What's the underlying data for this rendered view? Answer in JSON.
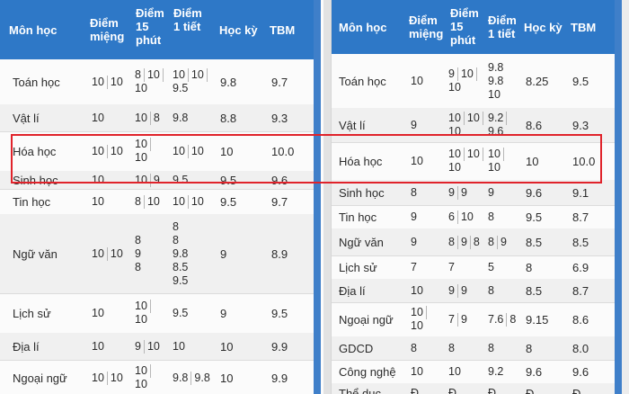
{
  "left_table": {
    "headers": {
      "subject": "Môn học",
      "oral": "Điểm miệng",
      "quiz15": "Điểm 15 phút",
      "test1": "Điểm 1 tiết",
      "semester": "Học kỳ",
      "avg": "TBM"
    },
    "rows": [
      {
        "subject": "Toán học",
        "oral": [
          "10",
          "10"
        ],
        "quiz15": [
          "8",
          "10",
          "10"
        ],
        "test1": [
          "10",
          "10",
          "9.5"
        ],
        "semester": "9.8",
        "avg": "9.7"
      },
      {
        "subject": "Vật lí",
        "oral": [
          "10"
        ],
        "quiz15": [
          "10",
          "8"
        ],
        "test1": [
          "9.8"
        ],
        "semester": "8.8",
        "avg": "9.3"
      },
      {
        "subject": "Hóa học",
        "oral": [
          "10",
          "10"
        ],
        "quiz15": [
          "10",
          "10"
        ],
        "test1": [
          "10",
          "10"
        ],
        "semester": "10",
        "avg": "10.0"
      },
      {
        "subject": "Sinh học",
        "oral": [
          "10"
        ],
        "quiz15": [
          "10",
          "9"
        ],
        "test1": [
          "9.5"
        ],
        "semester": "9.5",
        "avg": "9.6"
      },
      {
        "subject": "Tin học",
        "oral": [
          "10"
        ],
        "quiz15": [
          "8",
          "10"
        ],
        "test1": [
          "10",
          "10"
        ],
        "semester": "9.5",
        "avg": "9.7"
      },
      {
        "subject": "Ngữ văn",
        "oral": [
          "10",
          "10"
        ],
        "quiz15": [
          "8",
          "9",
          "8"
        ],
        "test1": [
          "8",
          "8",
          "9.8",
          "8.5",
          "9.5"
        ],
        "semester": "9",
        "avg": "8.9"
      },
      {
        "subject": "Lịch sử",
        "oral": [
          "10"
        ],
        "quiz15": [
          "10",
          "10"
        ],
        "test1": [
          "9.5"
        ],
        "semester": "9",
        "avg": "9.5"
      },
      {
        "subject": "Địa lí",
        "oral": [
          "10"
        ],
        "quiz15": [
          "9",
          "10"
        ],
        "test1": [
          "10"
        ],
        "semester": "10",
        "avg": "9.9"
      },
      {
        "subject": "Ngoại ngữ",
        "oral": [
          "10",
          "10"
        ],
        "quiz15": [
          "10",
          "10"
        ],
        "test1": [
          "9.8",
          "9.8"
        ],
        "semester": "10",
        "avg": "9.9"
      }
    ]
  },
  "right_table": {
    "headers": {
      "subject": "Môn học",
      "oral": "Điểm miệng",
      "quiz15": "Điểm 15 phút",
      "test1": "Điểm 1 tiết",
      "semester": "Học kỳ",
      "avg": "TBM"
    },
    "rows": [
      {
        "subject": "Toán học",
        "oral": [
          "10"
        ],
        "quiz15": [
          "9",
          "10",
          "10"
        ],
        "test1": [
          "9.8",
          "9.8",
          "10"
        ],
        "semester": "8.25",
        "avg": "9.5"
      },
      {
        "subject": "Vật lí",
        "oral": [
          "9"
        ],
        "quiz15": [
          "10",
          "10",
          "10"
        ],
        "test1": [
          "9.2",
          "9.6"
        ],
        "semester": "8.6",
        "avg": "9.3"
      },
      {
        "subject": "Hóa học",
        "oral": [
          "10"
        ],
        "quiz15": [
          "10",
          "10",
          "10"
        ],
        "test1": [
          "10",
          "10"
        ],
        "semester": "10",
        "avg": "10.0"
      },
      {
        "subject": "Sinh học",
        "oral": [
          "8"
        ],
        "quiz15": [
          "9",
          "9"
        ],
        "test1": [
          "9"
        ],
        "semester": "9.6",
        "avg": "9.1"
      },
      {
        "subject": "Tin học",
        "oral": [
          "9"
        ],
        "quiz15": [
          "6",
          "10"
        ],
        "test1": [
          "8"
        ],
        "semester": "9.5",
        "avg": "8.7"
      },
      {
        "subject": "Ngữ văn",
        "oral": [
          "9"
        ],
        "quiz15": [
          "8",
          "9",
          "8"
        ],
        "test1": [
          "8",
          "9"
        ],
        "semester": "8.5",
        "avg": "8.5"
      },
      {
        "subject": "Lịch sử",
        "oral": [
          "7"
        ],
        "quiz15": [
          "7"
        ],
        "test1": [
          "5"
        ],
        "semester": "8",
        "avg": "6.9"
      },
      {
        "subject": "Địa lí",
        "oral": [
          "10"
        ],
        "quiz15": [
          "9",
          "9"
        ],
        "test1": [
          "8"
        ],
        "semester": "8.5",
        "avg": "8.7"
      },
      {
        "subject": "Ngoại ngữ",
        "oral": [
          "10",
          "10"
        ],
        "quiz15": [
          "7",
          "9"
        ],
        "test1": [
          "7.6",
          "8"
        ],
        "semester": "9.15",
        "avg": "8.6"
      },
      {
        "subject": "GDCD",
        "oral": [
          "8"
        ],
        "quiz15": [
          "8"
        ],
        "test1": [
          "8"
        ],
        "semester": "8",
        "avg": "8.0"
      },
      {
        "subject": "Công nghệ",
        "oral": [
          "10"
        ],
        "quiz15": [
          "10"
        ],
        "test1": [
          "9.2"
        ],
        "semester": "9.6",
        "avg": "9.6"
      },
      {
        "subject": "Thể dục",
        "oral": [
          "Đ"
        ],
        "quiz15": [
          "Đ"
        ],
        "test1": [
          "Đ"
        ],
        "semester": "Đ",
        "avg": "Đ"
      }
    ]
  }
}
